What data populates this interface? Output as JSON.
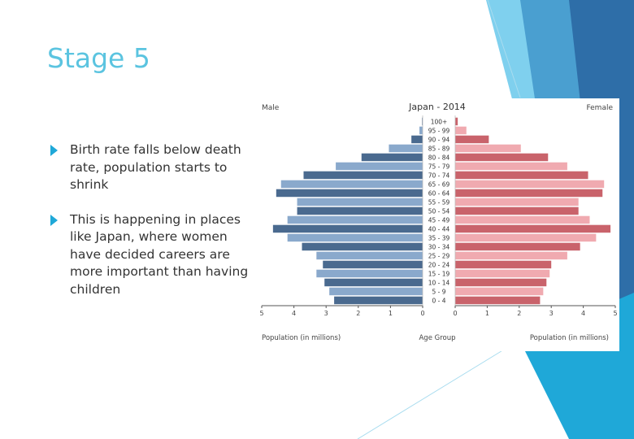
{
  "slide": {
    "title": "Stage 5",
    "bullets": [
      "Birth rate falls below death rate, population starts to shrink",
      "This is happening in places like Japan, where women have decided careers are more important than having children"
    ]
  },
  "colors": {
    "title": "#5bc4e0",
    "bullet_marker": "#1fa8d8",
    "male_dark": "#4a6a8f",
    "male_light": "#8aa9cc",
    "female_dark": "#c9636b",
    "female_light": "#f0aab0"
  },
  "chart_data": {
    "type": "bar",
    "orientation": "horizontal",
    "title": "Japan - 2014",
    "left_label": "Male",
    "right_label": "Female",
    "xlabel_left": "Population (in millions)",
    "xlabel_center": "Age Group",
    "xlabel_right": "Population (in millions)",
    "xlim": [
      0,
      5
    ],
    "ticks": [
      0,
      1,
      2,
      3,
      4,
      5
    ],
    "categories": [
      "100+",
      "95 - 99",
      "90 - 94",
      "85 - 89",
      "80 - 84",
      "75 - 79",
      "70 - 74",
      "65 - 69",
      "60 - 64",
      "55 - 59",
      "50 - 54",
      "45 - 49",
      "40 - 44",
      "35 - 39",
      "30 - 34",
      "25 - 29",
      "20 - 24",
      "15 - 19",
      "10 - 14",
      "5 - 9",
      "0 - 4"
    ],
    "series": [
      {
        "name": "Male",
        "values": [
          0.02,
          0.1,
          0.35,
          1.05,
          1.9,
          2.7,
          3.7,
          4.4,
          4.55,
          3.9,
          3.9,
          4.2,
          4.65,
          4.2,
          3.75,
          3.3,
          3.1,
          3.3,
          3.05,
          2.9,
          2.75
        ]
      },
      {
        "name": "Female",
        "values": [
          0.08,
          0.35,
          1.05,
          2.05,
          2.9,
          3.5,
          4.15,
          4.65,
          4.6,
          3.85,
          3.85,
          4.2,
          4.85,
          4.4,
          3.9,
          3.5,
          3.0,
          2.95,
          2.85,
          2.75,
          2.65
        ]
      }
    ]
  }
}
